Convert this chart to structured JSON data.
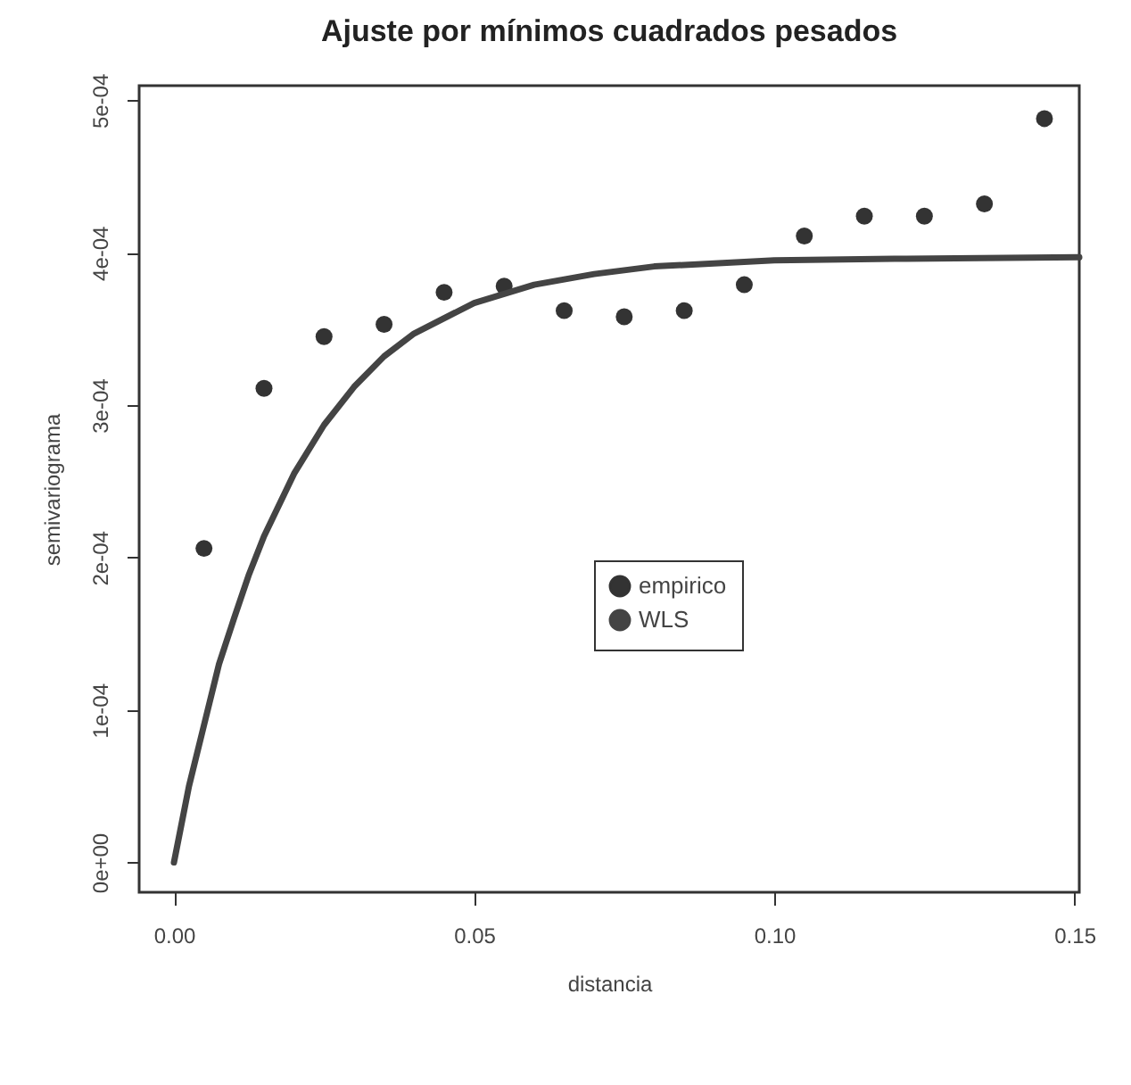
{
  "chart_data": {
    "type": "scatter",
    "title": "Ajuste por mínimos cuadrados pesados",
    "xlabel": "distancia",
    "ylabel": "semivariograma",
    "x": [
      0.005,
      0.015,
      0.025,
      0.035,
      0.045,
      0.055,
      0.065,
      0.075,
      0.085,
      0.095,
      0.105,
      0.115,
      0.125,
      0.135,
      0.145
    ],
    "series": [
      {
        "name": "empirico",
        "color": "#333333",
        "marker": "circle",
        "values": [
          0.000206,
          0.000311,
          0.000345,
          0.000353,
          0.000374,
          0.000378,
          0.000362,
          0.000358,
          0.000362,
          0.000379,
          0.000411,
          0.000424,
          0.000424,
          0.000432,
          0.000488
        ]
      },
      {
        "name": "WLS",
        "type": "line",
        "color": "#444444",
        "line_style": "solid",
        "marker": "none",
        "x": [
          0,
          0.0025,
          0.005,
          0.0075,
          0.01,
          0.0125,
          0.015,
          0.02,
          0.025,
          0.03,
          0.035,
          0.04,
          0.05,
          0.06,
          0.07,
          0.08,
          0.1,
          0.12,
          0.1508
        ],
        "values": [
          0,
          5e-05,
          9e-05,
          0.00013,
          0.00016,
          0.000189,
          0.000214,
          0.000255,
          0.000287,
          0.000312,
          0.000332,
          0.000347,
          0.000367,
          0.000379,
          0.000386,
          0.000391,
          0.000395,
          0.000396,
          0.000397
        ]
      }
    ],
    "xlim": [
      -0.0058,
      0.1508
    ],
    "ylim": [
      -1.96e-05,
      0.0005096
    ],
    "xticks": [
      {
        "value": 0,
        "label": "0.00"
      },
      {
        "value": 0.05,
        "label": "0.05"
      },
      {
        "value": 0.1,
        "label": "0.10"
      },
      {
        "value": 0.15,
        "label": "0.15"
      }
    ],
    "yticks": [
      {
        "value": 0,
        "label": "0e+00"
      },
      {
        "value": 0.0001,
        "label": "1e-04"
      },
      {
        "value": 0.0002,
        "label": "2e-04"
      },
      {
        "value": 0.0003,
        "label": "3e-04"
      },
      {
        "value": 0.0004,
        "label": "4e-04"
      },
      {
        "value": 0.0005,
        "label": "5e-04"
      }
    ],
    "grid": false,
    "legend": "center"
  }
}
